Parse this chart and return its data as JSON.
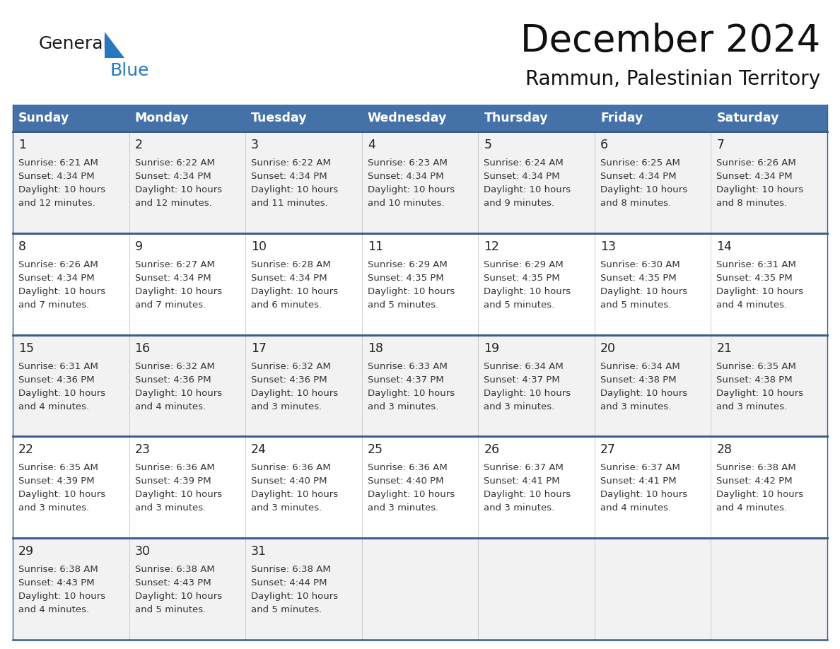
{
  "title": "December 2024",
  "subtitle": "Rammun, Palestinian Territory",
  "header_color": "#4472A8",
  "header_text_color": "#FFFFFF",
  "row_bg_even": "#F2F2F2",
  "row_bg_odd": "#FFFFFF",
  "border_color": "#3A5F8A",
  "text_color": "#333333",
  "day_num_color": "#222222",
  "logo_general_color": "#1a1a1a",
  "logo_blue_color": "#2878C0",
  "logo_triangle_color": "#2878C0",
  "days_of_week": [
    "Sunday",
    "Monday",
    "Tuesday",
    "Wednesday",
    "Thursday",
    "Friday",
    "Saturday"
  ],
  "calendar": [
    [
      {
        "day": 1,
        "sunrise": "6:21 AM",
        "sunset": "4:34 PM",
        "daylight": "10 hours and 12 minutes."
      },
      {
        "day": 2,
        "sunrise": "6:22 AM",
        "sunset": "4:34 PM",
        "daylight": "10 hours and 12 minutes."
      },
      {
        "day": 3,
        "sunrise": "6:22 AM",
        "sunset": "4:34 PM",
        "daylight": "10 hours and 11 minutes."
      },
      {
        "day": 4,
        "sunrise": "6:23 AM",
        "sunset": "4:34 PM",
        "daylight": "10 hours and 10 minutes."
      },
      {
        "day": 5,
        "sunrise": "6:24 AM",
        "sunset": "4:34 PM",
        "daylight": "10 hours and 9 minutes."
      },
      {
        "day": 6,
        "sunrise": "6:25 AM",
        "sunset": "4:34 PM",
        "daylight": "10 hours and 8 minutes."
      },
      {
        "day": 7,
        "sunrise": "6:26 AM",
        "sunset": "4:34 PM",
        "daylight": "10 hours and 8 minutes."
      }
    ],
    [
      {
        "day": 8,
        "sunrise": "6:26 AM",
        "sunset": "4:34 PM",
        "daylight": "10 hours and 7 minutes."
      },
      {
        "day": 9,
        "sunrise": "6:27 AM",
        "sunset": "4:34 PM",
        "daylight": "10 hours and 7 minutes."
      },
      {
        "day": 10,
        "sunrise": "6:28 AM",
        "sunset": "4:34 PM",
        "daylight": "10 hours and 6 minutes."
      },
      {
        "day": 11,
        "sunrise": "6:29 AM",
        "sunset": "4:35 PM",
        "daylight": "10 hours and 5 minutes."
      },
      {
        "day": 12,
        "sunrise": "6:29 AM",
        "sunset": "4:35 PM",
        "daylight": "10 hours and 5 minutes."
      },
      {
        "day": 13,
        "sunrise": "6:30 AM",
        "sunset": "4:35 PM",
        "daylight": "10 hours and 5 minutes."
      },
      {
        "day": 14,
        "sunrise": "6:31 AM",
        "sunset": "4:35 PM",
        "daylight": "10 hours and 4 minutes."
      }
    ],
    [
      {
        "day": 15,
        "sunrise": "6:31 AM",
        "sunset": "4:36 PM",
        "daylight": "10 hours and 4 minutes."
      },
      {
        "day": 16,
        "sunrise": "6:32 AM",
        "sunset": "4:36 PM",
        "daylight": "10 hours and 4 minutes."
      },
      {
        "day": 17,
        "sunrise": "6:32 AM",
        "sunset": "4:36 PM",
        "daylight": "10 hours and 3 minutes."
      },
      {
        "day": 18,
        "sunrise": "6:33 AM",
        "sunset": "4:37 PM",
        "daylight": "10 hours and 3 minutes."
      },
      {
        "day": 19,
        "sunrise": "6:34 AM",
        "sunset": "4:37 PM",
        "daylight": "10 hours and 3 minutes."
      },
      {
        "day": 20,
        "sunrise": "6:34 AM",
        "sunset": "4:38 PM",
        "daylight": "10 hours and 3 minutes."
      },
      {
        "day": 21,
        "sunrise": "6:35 AM",
        "sunset": "4:38 PM",
        "daylight": "10 hours and 3 minutes."
      }
    ],
    [
      {
        "day": 22,
        "sunrise": "6:35 AM",
        "sunset": "4:39 PM",
        "daylight": "10 hours and 3 minutes."
      },
      {
        "day": 23,
        "sunrise": "6:36 AM",
        "sunset": "4:39 PM",
        "daylight": "10 hours and 3 minutes."
      },
      {
        "day": 24,
        "sunrise": "6:36 AM",
        "sunset": "4:40 PM",
        "daylight": "10 hours and 3 minutes."
      },
      {
        "day": 25,
        "sunrise": "6:36 AM",
        "sunset": "4:40 PM",
        "daylight": "10 hours and 3 minutes."
      },
      {
        "day": 26,
        "sunrise": "6:37 AM",
        "sunset": "4:41 PM",
        "daylight": "10 hours and 3 minutes."
      },
      {
        "day": 27,
        "sunrise": "6:37 AM",
        "sunset": "4:41 PM",
        "daylight": "10 hours and 4 minutes."
      },
      {
        "day": 28,
        "sunrise": "6:38 AM",
        "sunset": "4:42 PM",
        "daylight": "10 hours and 4 minutes."
      }
    ],
    [
      {
        "day": 29,
        "sunrise": "6:38 AM",
        "sunset": "4:43 PM",
        "daylight": "10 hours and 4 minutes."
      },
      {
        "day": 30,
        "sunrise": "6:38 AM",
        "sunset": "4:43 PM",
        "daylight": "10 hours and 5 minutes."
      },
      {
        "day": 31,
        "sunrise": "6:38 AM",
        "sunset": "4:44 PM",
        "daylight": "10 hours and 5 minutes."
      },
      null,
      null,
      null,
      null
    ]
  ]
}
